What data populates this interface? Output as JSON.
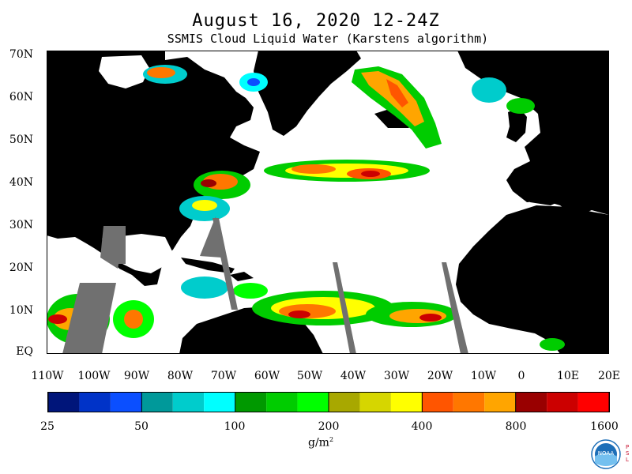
{
  "title": "August 16, 2020 12-24Z",
  "subtitle": "SSMIS Cloud Liquid Water (Karstens algorithm)",
  "map": {
    "lat_labels": [
      "70N",
      "60N",
      "50N",
      "40N",
      "30N",
      "20N",
      "10N",
      "EQ"
    ],
    "lon_labels": [
      "110W",
      "100W",
      "90W",
      "80W",
      "70W",
      "60W",
      "50W",
      "40W",
      "30W",
      "20W",
      "10W",
      "0",
      "10E",
      "20E"
    ],
    "colors": {
      "land": "#000000",
      "no_cloud": "#ffffff",
      "no_data_swath": "#707070"
    }
  },
  "colorbar": {
    "labels": [
      "25",
      "50",
      "100",
      "200",
      "400",
      "800",
      "1600"
    ],
    "units_base": "g/m",
    "units_exp": "2",
    "colors": [
      "#00157a",
      "#0033c8",
      "#0b4fff",
      "#00999a",
      "#00cccc",
      "#00ffff",
      "#009900",
      "#00cc00",
      "#00ff00",
      "#a8a800",
      "#d6d600",
      "#ffff00",
      "#ff5500",
      "#ff7700",
      "#ffa500",
      "#990000",
      "#cc0000",
      "#ff0000"
    ]
  },
  "logo": {
    "icon": "noaa-logo",
    "text": "NOAA",
    "side_text": "PSL"
  }
}
